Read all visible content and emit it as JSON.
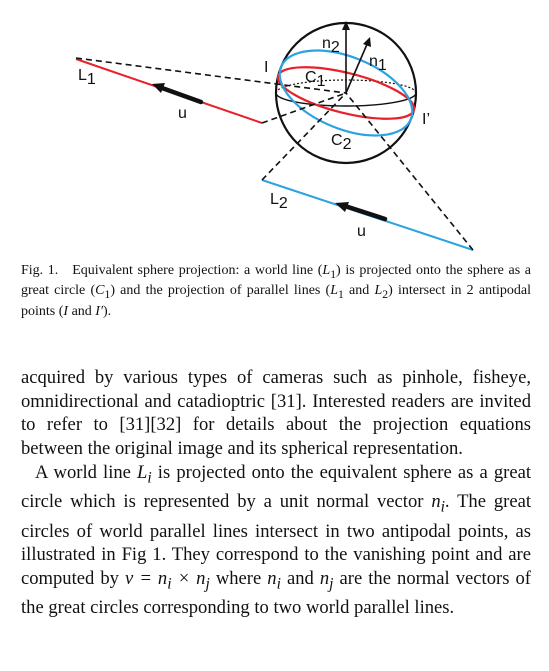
{
  "figure": {
    "labels": {
      "n2": "n",
      "n2_sub": "2",
      "n1": "n",
      "n1_sub": "1",
      "c1": "C",
      "c1_sub": "1",
      "c2": "C",
      "c2_sub": "2",
      "i": "I",
      "i_prime": "I’",
      "l1": "L",
      "l1_sub": "1",
      "l2": "L",
      "l2_sub": "2",
      "u_top": "u",
      "u_bottom": "u"
    },
    "colors": {
      "red_line": "#e8202a",
      "blue_line": "#2ba3e0",
      "black": "#111111"
    }
  },
  "caption": {
    "prefix": "Fig. 1.",
    "t1": "Equivalent sphere projection: a world line (",
    "L1a": "L",
    "L1a_sub": "1",
    "t2": ") is projected onto the sphere as a great circle (",
    "C1": "C",
    "C1_sub": "1",
    "t3": ") and the projection of parallel lines (",
    "L1b": "L",
    "L1b_sub": "1",
    "t4": " and ",
    "L2": "L",
    "L2_sub": "2",
    "t5": ") intersect in 2 antipodal points (",
    "I": "I",
    "t6": " and ",
    "Ip": "I′",
    "t7": ")."
  },
  "body": {
    "p1": "acquired by various types of cameras such as pinhole, fisheye, omnidirectional and catadioptric [31]. Interested readers are invited to refer to [31][32] for details about the projection equations between the original image and its spherical representation.",
    "p2_a": "A world line ",
    "p2_Li": "L",
    "p2_Li_sub": "i",
    "p2_b": " is projected onto the equivalent sphere as a great circle which is represented by a unit normal vector ",
    "p2_ni": "n",
    "p2_ni_sub": "i",
    "p2_c": ". The great circles of world parallel lines intersect in two antipodal points, as illustrated in Fig 1. They correspond to the vanishing point and are computed by ",
    "p2_eq": "v = n",
    "p2_eq_sub1": "i",
    "p2_eq_x": " × n",
    "p2_eq_sub2": "j",
    "p2_d": " where ",
    "p2_ni2": "n",
    "p2_ni2_sub": "i",
    "p2_e": " and ",
    "p2_nj": "n",
    "p2_nj_sub": "j",
    "p2_f": " are the normal vectors of the great circles corresponding to two world parallel lines."
  }
}
